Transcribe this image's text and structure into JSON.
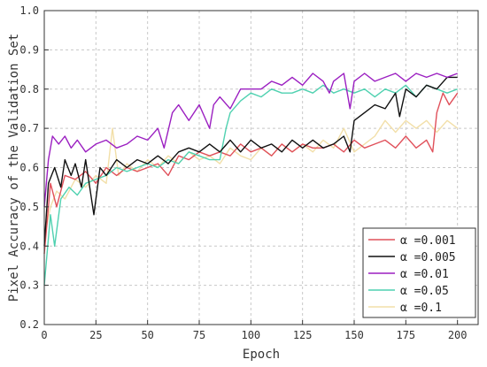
{
  "chart_data": {
    "type": "line",
    "title": "",
    "xlabel": "Epoch",
    "ylabel": "Pixel Accuracy of the Validation Set",
    "xlim": [
      0,
      210
    ],
    "ylim": [
      0.2,
      1.0
    ],
    "x_ticks": [
      "0",
      "25",
      "50",
      "75",
      "100",
      "125",
      "150",
      "175",
      "200"
    ],
    "y_ticks": [
      "0.2",
      "0.3",
      "0.4",
      "0.5",
      "0.6",
      "0.7",
      "0.8",
      "0.9",
      "1.0"
    ],
    "grid": true,
    "legend_position": "bottom-right",
    "series": [
      {
        "name": "α =0.001",
        "color": "#e0505a",
        "points": [
          [
            0,
            0.38
          ],
          [
            3,
            0.56
          ],
          [
            6,
            0.5
          ],
          [
            10,
            0.58
          ],
          [
            15,
            0.57
          ],
          [
            20,
            0.59
          ],
          [
            25,
            0.56
          ],
          [
            30,
            0.6
          ],
          [
            35,
            0.58
          ],
          [
            40,
            0.6
          ],
          [
            45,
            0.59
          ],
          [
            50,
            0.6
          ],
          [
            55,
            0.61
          ],
          [
            60,
            0.58
          ],
          [
            65,
            0.63
          ],
          [
            70,
            0.62
          ],
          [
            75,
            0.64
          ],
          [
            80,
            0.63
          ],
          [
            85,
            0.64
          ],
          [
            90,
            0.63
          ],
          [
            95,
            0.66
          ],
          [
            100,
            0.64
          ],
          [
            105,
            0.65
          ],
          [
            110,
            0.63
          ],
          [
            115,
            0.66
          ],
          [
            120,
            0.64
          ],
          [
            125,
            0.66
          ],
          [
            130,
            0.65
          ],
          [
            135,
            0.65
          ],
          [
            140,
            0.66
          ],
          [
            145,
            0.64
          ],
          [
            150,
            0.67
          ],
          [
            155,
            0.65
          ],
          [
            160,
            0.66
          ],
          [
            165,
            0.67
          ],
          [
            170,
            0.65
          ],
          [
            175,
            0.68
          ],
          [
            180,
            0.65
          ],
          [
            185,
            0.67
          ],
          [
            188,
            0.64
          ],
          [
            190,
            0.74
          ],
          [
            193,
            0.79
          ],
          [
            196,
            0.76
          ],
          [
            200,
            0.79
          ]
        ]
      },
      {
        "name": "α =0.005",
        "color": "#111111",
        "points": [
          [
            0,
            0.4
          ],
          [
            2,
            0.56
          ],
          [
            5,
            0.6
          ],
          [
            8,
            0.55
          ],
          [
            10,
            0.62
          ],
          [
            13,
            0.58
          ],
          [
            15,
            0.61
          ],
          [
            18,
            0.55
          ],
          [
            20,
            0.62
          ],
          [
            24,
            0.48
          ],
          [
            27,
            0.6
          ],
          [
            30,
            0.58
          ],
          [
            35,
            0.62
          ],
          [
            40,
            0.6
          ],
          [
            45,
            0.62
          ],
          [
            50,
            0.61
          ],
          [
            55,
            0.63
          ],
          [
            60,
            0.61
          ],
          [
            65,
            0.64
          ],
          [
            70,
            0.65
          ],
          [
            75,
            0.64
          ],
          [
            80,
            0.66
          ],
          [
            85,
            0.64
          ],
          [
            90,
            0.67
          ],
          [
            95,
            0.64
          ],
          [
            100,
            0.67
          ],
          [
            105,
            0.65
          ],
          [
            110,
            0.66
          ],
          [
            115,
            0.64
          ],
          [
            120,
            0.67
          ],
          [
            125,
            0.65
          ],
          [
            130,
            0.67
          ],
          [
            135,
            0.65
          ],
          [
            140,
            0.66
          ],
          [
            145,
            0.68
          ],
          [
            148,
            0.64
          ],
          [
            150,
            0.72
          ],
          [
            155,
            0.74
          ],
          [
            160,
            0.76
          ],
          [
            165,
            0.75
          ],
          [
            170,
            0.79
          ],
          [
            172,
            0.73
          ],
          [
            175,
            0.8
          ],
          [
            180,
            0.78
          ],
          [
            185,
            0.81
          ],
          [
            190,
            0.8
          ],
          [
            195,
            0.83
          ],
          [
            200,
            0.83
          ]
        ]
      },
      {
        "name": "α =0.01",
        "color": "#9b1fc1",
        "points": [
          [
            0,
            0.5
          ],
          [
            2,
            0.62
          ],
          [
            4,
            0.68
          ],
          [
            7,
            0.66
          ],
          [
            10,
            0.68
          ],
          [
            13,
            0.65
          ],
          [
            16,
            0.67
          ],
          [
            20,
            0.64
          ],
          [
            25,
            0.66
          ],
          [
            30,
            0.67
          ],
          [
            35,
            0.65
          ],
          [
            40,
            0.66
          ],
          [
            45,
            0.68
          ],
          [
            50,
            0.67
          ],
          [
            55,
            0.7
          ],
          [
            58,
            0.65
          ],
          [
            62,
            0.74
          ],
          [
            65,
            0.76
          ],
          [
            70,
            0.72
          ],
          [
            75,
            0.76
          ],
          [
            80,
            0.7
          ],
          [
            82,
            0.76
          ],
          [
            85,
            0.78
          ],
          [
            90,
            0.75
          ],
          [
            95,
            0.8
          ],
          [
            100,
            0.8
          ],
          [
            105,
            0.8
          ],
          [
            110,
            0.82
          ],
          [
            115,
            0.81
          ],
          [
            120,
            0.83
          ],
          [
            125,
            0.81
          ],
          [
            130,
            0.84
          ],
          [
            135,
            0.82
          ],
          [
            138,
            0.79
          ],
          [
            140,
            0.82
          ],
          [
            145,
            0.84
          ],
          [
            148,
            0.75
          ],
          [
            150,
            0.82
          ],
          [
            155,
            0.84
          ],
          [
            160,
            0.82
          ],
          [
            165,
            0.83
          ],
          [
            170,
            0.84
          ],
          [
            175,
            0.82
          ],
          [
            180,
            0.84
          ],
          [
            185,
            0.83
          ],
          [
            190,
            0.84
          ],
          [
            195,
            0.83
          ],
          [
            200,
            0.84
          ]
        ]
      },
      {
        "name": "α =0.05",
        "color": "#4fd1b0",
        "points": [
          [
            0,
            0.3
          ],
          [
            3,
            0.48
          ],
          [
            5,
            0.4
          ],
          [
            8,
            0.52
          ],
          [
            12,
            0.55
          ],
          [
            16,
            0.53
          ],
          [
            20,
            0.56
          ],
          [
            25,
            0.57
          ],
          [
            30,
            0.58
          ],
          [
            35,
            0.6
          ],
          [
            40,
            0.59
          ],
          [
            45,
            0.6
          ],
          [
            50,
            0.61
          ],
          [
            55,
            0.6
          ],
          [
            60,
            0.62
          ],
          [
            65,
            0.61
          ],
          [
            70,
            0.64
          ],
          [
            75,
            0.63
          ],
          [
            80,
            0.62
          ],
          [
            85,
            0.62
          ],
          [
            88,
            0.7
          ],
          [
            90,
            0.74
          ],
          [
            95,
            0.77
          ],
          [
            100,
            0.79
          ],
          [
            105,
            0.78
          ],
          [
            110,
            0.8
          ],
          [
            115,
            0.79
          ],
          [
            120,
            0.79
          ],
          [
            125,
            0.8
          ],
          [
            130,
            0.79
          ],
          [
            135,
            0.81
          ],
          [
            140,
            0.79
          ],
          [
            145,
            0.8
          ],
          [
            150,
            0.79
          ],
          [
            155,
            0.8
          ],
          [
            160,
            0.78
          ],
          [
            165,
            0.8
          ],
          [
            170,
            0.79
          ],
          [
            175,
            0.81
          ],
          [
            180,
            0.78
          ],
          [
            185,
            0.81
          ],
          [
            190,
            0.8
          ],
          [
            195,
            0.79
          ],
          [
            200,
            0.8
          ]
        ]
      },
      {
        "name": "α =0.1",
        "color": "#f2dfa8",
        "points": [
          [
            0,
            0.42
          ],
          [
            3,
            0.5
          ],
          [
            6,
            0.54
          ],
          [
            10,
            0.52
          ],
          [
            15,
            0.57
          ],
          [
            20,
            0.55
          ],
          [
            25,
            0.58
          ],
          [
            30,
            0.56
          ],
          [
            33,
            0.7
          ],
          [
            36,
            0.58
          ],
          [
            40,
            0.61
          ],
          [
            45,
            0.59
          ],
          [
            50,
            0.62
          ],
          [
            55,
            0.6
          ],
          [
            60,
            0.63
          ],
          [
            65,
            0.61
          ],
          [
            70,
            0.64
          ],
          [
            75,
            0.62
          ],
          [
            80,
            0.63
          ],
          [
            85,
            0.61
          ],
          [
            90,
            0.65
          ],
          [
            95,
            0.63
          ],
          [
            100,
            0.62
          ],
          [
            105,
            0.65
          ],
          [
            110,
            0.63
          ],
          [
            115,
            0.66
          ],
          [
            120,
            0.64
          ],
          [
            125,
            0.66
          ],
          [
            130,
            0.64
          ],
          [
            135,
            0.67
          ],
          [
            140,
            0.65
          ],
          [
            145,
            0.7
          ],
          [
            150,
            0.64
          ],
          [
            155,
            0.66
          ],
          [
            160,
            0.68
          ],
          [
            165,
            0.72
          ],
          [
            170,
            0.69
          ],
          [
            175,
            0.72
          ],
          [
            180,
            0.7
          ],
          [
            185,
            0.72
          ],
          [
            190,
            0.69
          ],
          [
            195,
            0.72
          ],
          [
            200,
            0.7
          ]
        ]
      }
    ]
  }
}
